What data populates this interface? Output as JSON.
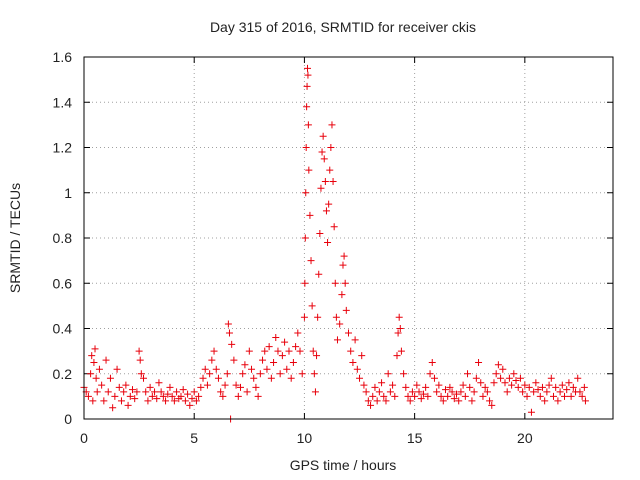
{
  "chart_data": {
    "type": "scatter",
    "title": "Day 315 of 2016, SRMTID for receiver ckis",
    "xlabel": "GPS time / hours",
    "ylabel": "SRMTID / TECUs",
    "xlim": [
      0,
      24
    ],
    "ylim": [
      0,
      1.6
    ],
    "x_ticks": [
      0,
      5,
      10,
      15,
      20
    ],
    "y_ticks": [
      0,
      0.2,
      0.4,
      0.6,
      0.8,
      1,
      1.2,
      1.4,
      1.6
    ],
    "x_tick_labels": [
      "0",
      "5",
      "10",
      "15",
      "20"
    ],
    "y_tick_labels": [
      "0",
      "0.2",
      "0.4",
      "0.6",
      "0.8",
      "1",
      "1.2",
      "1.4",
      "1.6"
    ],
    "grid": true,
    "marker": "plus",
    "series_color": "#e8000b",
    "series": [
      {
        "name": "SRMTID",
        "points": [
          [
            0.0,
            0.14
          ],
          [
            0.1,
            0.12
          ],
          [
            0.2,
            0.1
          ],
          [
            0.3,
            0.2
          ],
          [
            0.35,
            0.28
          ],
          [
            0.4,
            0.08
          ],
          [
            0.45,
            0.25
          ],
          [
            0.5,
            0.31
          ],
          [
            0.55,
            0.18
          ],
          [
            0.6,
            0.12
          ],
          [
            0.7,
            0.22
          ],
          [
            0.8,
            0.15
          ],
          [
            0.9,
            0.08
          ],
          [
            1.0,
            0.26
          ],
          [
            1.1,
            0.12
          ],
          [
            1.2,
            0.18
          ],
          [
            1.3,
            0.05
          ],
          [
            1.4,
            0.1
          ],
          [
            1.5,
            0.22
          ],
          [
            1.6,
            0.14
          ],
          [
            1.7,
            0.08
          ],
          [
            1.8,
            0.12
          ],
          [
            1.9,
            0.15
          ],
          [
            2.0,
            0.06
          ],
          [
            2.1,
            0.1
          ],
          [
            2.2,
            0.13
          ],
          [
            2.3,
            0.09
          ],
          [
            2.4,
            0.12
          ],
          [
            2.5,
            0.3
          ],
          [
            2.55,
            0.26
          ],
          [
            2.6,
            0.2
          ],
          [
            2.7,
            0.18
          ],
          [
            2.8,
            0.12
          ],
          [
            2.9,
            0.08
          ],
          [
            3.0,
            0.14
          ],
          [
            3.1,
            0.1
          ],
          [
            3.2,
            0.12
          ],
          [
            3.3,
            0.09
          ],
          [
            3.4,
            0.16
          ],
          [
            3.5,
            0.12
          ],
          [
            3.6,
            0.1
          ],
          [
            3.7,
            0.08
          ],
          [
            3.8,
            0.11
          ],
          [
            3.9,
            0.14
          ],
          [
            4.0,
            0.1
          ],
          [
            4.1,
            0.08
          ],
          [
            4.2,
            0.12
          ],
          [
            4.3,
            0.09
          ],
          [
            4.4,
            0.1
          ],
          [
            4.5,
            0.13
          ],
          [
            4.6,
            0.08
          ],
          [
            4.7,
            0.11
          ],
          [
            4.8,
            0.06
          ],
          [
            4.9,
            0.09
          ],
          [
            5.0,
            0.12
          ],
          [
            5.1,
            0.08
          ],
          [
            5.2,
            0.1
          ],
          [
            5.3,
            0.14
          ],
          [
            5.4,
            0.18
          ],
          [
            5.5,
            0.22
          ],
          [
            5.6,
            0.15
          ],
          [
            5.7,
            0.2
          ],
          [
            5.8,
            0.26
          ],
          [
            5.9,
            0.3
          ],
          [
            6.0,
            0.22
          ],
          [
            6.1,
            0.18
          ],
          [
            6.2,
            0.12
          ],
          [
            6.3,
            0.1
          ],
          [
            6.4,
            0.15
          ],
          [
            6.5,
            0.2
          ],
          [
            6.55,
            0.42
          ],
          [
            6.6,
            0.38
          ],
          [
            6.65,
            0.0
          ],
          [
            6.7,
            0.33
          ],
          [
            6.8,
            0.26
          ],
          [
            6.9,
            0.15
          ],
          [
            7.0,
            0.1
          ],
          [
            7.1,
            0.14
          ],
          [
            7.2,
            0.2
          ],
          [
            7.3,
            0.24
          ],
          [
            7.4,
            0.12
          ],
          [
            7.5,
            0.3
          ],
          [
            7.6,
            0.22
          ],
          [
            7.7,
            0.18
          ],
          [
            7.8,
            0.14
          ],
          [
            7.9,
            0.1
          ],
          [
            8.0,
            0.2
          ],
          [
            8.1,
            0.26
          ],
          [
            8.2,
            0.3
          ],
          [
            8.3,
            0.22
          ],
          [
            8.4,
            0.32
          ],
          [
            8.5,
            0.18
          ],
          [
            8.6,
            0.25
          ],
          [
            8.7,
            0.36
          ],
          [
            8.8,
            0.3
          ],
          [
            8.9,
            0.2
          ],
          [
            9.0,
            0.28
          ],
          [
            9.1,
            0.34
          ],
          [
            9.2,
            0.22
          ],
          [
            9.3,
            0.3
          ],
          [
            9.4,
            0.18
          ],
          [
            9.5,
            0.25
          ],
          [
            9.6,
            0.32
          ],
          [
            9.7,
            0.38
          ],
          [
            9.8,
            0.3
          ],
          [
            9.9,
            0.2
          ],
          [
            10.0,
            0.45
          ],
          [
            10.02,
            0.6
          ],
          [
            10.04,
            0.8
          ],
          [
            10.06,
            1.0
          ],
          [
            10.08,
            1.2
          ],
          [
            10.1,
            1.38
          ],
          [
            10.12,
            1.47
          ],
          [
            10.14,
            1.55
          ],
          [
            10.16,
            1.52
          ],
          [
            10.18,
            1.3
          ],
          [
            10.2,
            1.1
          ],
          [
            10.25,
            0.9
          ],
          [
            10.3,
            0.7
          ],
          [
            10.35,
            0.5
          ],
          [
            10.4,
            0.3
          ],
          [
            10.45,
            0.2
          ],
          [
            10.5,
            0.12
          ],
          [
            10.55,
            0.28
          ],
          [
            10.6,
            0.45
          ],
          [
            10.65,
            0.64
          ],
          [
            10.7,
            0.82
          ],
          [
            10.75,
            1.02
          ],
          [
            10.8,
            1.18
          ],
          [
            10.85,
            1.25
          ],
          [
            10.9,
            1.15
          ],
          [
            10.95,
            1.05
          ],
          [
            11.0,
            0.92
          ],
          [
            11.05,
            0.78
          ],
          [
            11.1,
            0.95
          ],
          [
            11.15,
            1.1
          ],
          [
            11.2,
            1.2
          ],
          [
            11.25,
            1.3
          ],
          [
            11.3,
            1.05
          ],
          [
            11.35,
            0.85
          ],
          [
            11.4,
            0.6
          ],
          [
            11.45,
            0.45
          ],
          [
            11.5,
            0.35
          ],
          [
            11.6,
            0.42
          ],
          [
            11.7,
            0.55
          ],
          [
            11.75,
            0.68
          ],
          [
            11.8,
            0.72
          ],
          [
            11.85,
            0.6
          ],
          [
            11.9,
            0.48
          ],
          [
            12.0,
            0.38
          ],
          [
            12.1,
            0.3
          ],
          [
            12.2,
            0.25
          ],
          [
            12.3,
            0.35
          ],
          [
            12.4,
            0.22
          ],
          [
            12.5,
            0.18
          ],
          [
            12.6,
            0.28
          ],
          [
            12.7,
            0.15
          ],
          [
            12.8,
            0.12
          ],
          [
            12.9,
            0.08
          ],
          [
            13.0,
            0.06
          ],
          [
            13.1,
            0.1
          ],
          [
            13.2,
            0.14
          ],
          [
            13.3,
            0.08
          ],
          [
            13.4,
            0.12
          ],
          [
            13.5,
            0.16
          ],
          [
            13.6,
            0.1
          ],
          [
            13.7,
            0.08
          ],
          [
            13.8,
            0.2
          ],
          [
            13.9,
            0.12
          ],
          [
            14.0,
            0.15
          ],
          [
            14.1,
            0.1
          ],
          [
            14.2,
            0.28
          ],
          [
            14.25,
            0.38
          ],
          [
            14.3,
            0.45
          ],
          [
            14.35,
            0.4
          ],
          [
            14.4,
            0.3
          ],
          [
            14.5,
            0.2
          ],
          [
            14.6,
            0.14
          ],
          [
            14.7,
            0.1
          ],
          [
            14.8,
            0.08
          ],
          [
            14.9,
            0.12
          ],
          [
            15.0,
            0.1
          ],
          [
            15.1,
            0.15
          ],
          [
            15.2,
            0.12
          ],
          [
            15.3,
            0.09
          ],
          [
            15.4,
            0.11
          ],
          [
            15.5,
            0.14
          ],
          [
            15.6,
            0.1
          ],
          [
            15.7,
            0.2
          ],
          [
            15.8,
            0.25
          ],
          [
            15.9,
            0.18
          ],
          [
            16.0,
            0.12
          ],
          [
            16.1,
            0.15
          ],
          [
            16.2,
            0.1
          ],
          [
            16.3,
            0.08
          ],
          [
            16.4,
            0.13
          ],
          [
            16.5,
            0.1
          ],
          [
            16.6,
            0.14
          ],
          [
            16.7,
            0.12
          ],
          [
            16.8,
            0.09
          ],
          [
            16.9,
            0.11
          ],
          [
            17.0,
            0.08
          ],
          [
            17.1,
            0.12
          ],
          [
            17.2,
            0.15
          ],
          [
            17.3,
            0.1
          ],
          [
            17.4,
            0.2
          ],
          [
            17.5,
            0.14
          ],
          [
            17.6,
            0.08
          ],
          [
            17.7,
            0.12
          ],
          [
            17.8,
            0.18
          ],
          [
            17.9,
            0.25
          ],
          [
            18.0,
            0.16
          ],
          [
            18.1,
            0.1
          ],
          [
            18.2,
            0.14
          ],
          [
            18.3,
            0.12
          ],
          [
            18.4,
            0.08
          ],
          [
            18.5,
            0.06
          ],
          [
            18.6,
            0.16
          ],
          [
            18.7,
            0.2
          ],
          [
            18.8,
            0.24
          ],
          [
            18.9,
            0.18
          ],
          [
            19.0,
            0.22
          ],
          [
            19.1,
            0.16
          ],
          [
            19.2,
            0.12
          ],
          [
            19.3,
            0.18
          ],
          [
            19.4,
            0.15
          ],
          [
            19.5,
            0.2
          ],
          [
            19.6,
            0.17
          ],
          [
            19.7,
            0.14
          ],
          [
            19.8,
            0.18
          ],
          [
            19.9,
            0.12
          ],
          [
            20.0,
            0.15
          ],
          [
            20.1,
            0.1
          ],
          [
            20.2,
            0.14
          ],
          [
            20.3,
            0.03
          ],
          [
            20.4,
            0.12
          ],
          [
            20.5,
            0.16
          ],
          [
            20.6,
            0.13
          ],
          [
            20.7,
            0.1
          ],
          [
            20.8,
            0.14
          ],
          [
            20.9,
            0.08
          ],
          [
            21.0,
            0.12
          ],
          [
            21.1,
            0.15
          ],
          [
            21.2,
            0.18
          ],
          [
            21.3,
            0.1
          ],
          [
            21.4,
            0.14
          ],
          [
            21.5,
            0.08
          ],
          [
            21.6,
            0.12
          ],
          [
            21.7,
            0.15
          ],
          [
            21.8,
            0.1
          ],
          [
            21.9,
            0.13
          ],
          [
            22.0,
            0.16
          ],
          [
            22.1,
            0.1
          ],
          [
            22.2,
            0.14
          ],
          [
            22.3,
            0.12
          ],
          [
            22.4,
            0.18
          ],
          [
            22.5,
            0.12
          ],
          [
            22.6,
            0.1
          ],
          [
            22.7,
            0.14
          ],
          [
            22.75,
            0.08
          ]
        ]
      }
    ]
  }
}
